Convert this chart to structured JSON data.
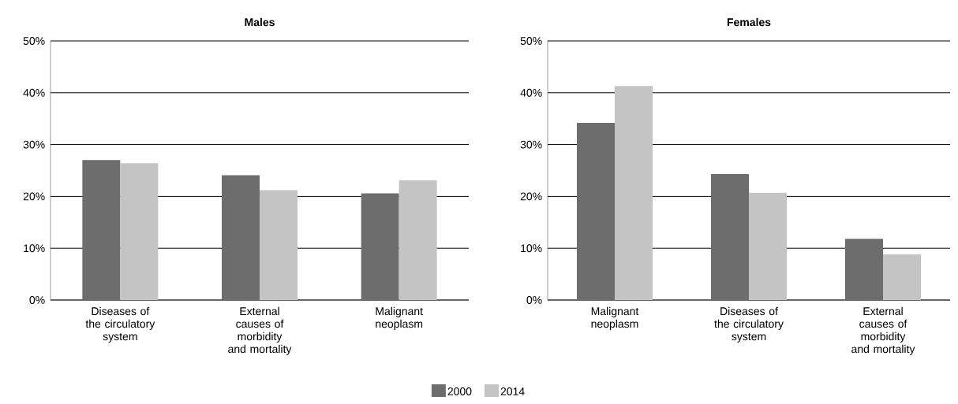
{
  "chart_data": [
    {
      "type": "bar",
      "title": "Males",
      "categories": [
        "Diseases of the circulatory system",
        "External causes of morbidity and mortality",
        "Malignant neoplasm"
      ],
      "series": [
        {
          "color": "#6d6d6d",
          "values": [
            27.0,
            24.1,
            20.6
          ]
        },
        {
          "color": "#c4c4c4",
          "values": [
            26.4,
            21.2,
            23.1
          ]
        }
      ],
      "ylim": [
        0,
        50
      ],
      "yticks": [
        {
          "value": 0,
          "label": "0%"
        },
        {
          "value": 10,
          "label": "10%"
        },
        {
          "value": 20,
          "label": "20%"
        },
        {
          "value": 30,
          "label": "30%"
        },
        {
          "value": 40,
          "label": "40%"
        },
        {
          "value": 50,
          "label": "50%"
        }
      ],
      "grid": "y"
    },
    {
      "type": "bar",
      "title": "Females",
      "categories": [
        "Malignant neoplasm",
        "Diseases of the circulatory system",
        "External causes of morbidity and mortality"
      ],
      "series": [
        {
          "name": "2000",
          "color": "#6d6d6d",
          "values": [
            34.2,
            24.3,
            11.8
          ]
        },
        {
          "name": "2014",
          "color": "#c4c4c4",
          "values": [
            41.3,
            20.7,
            8.8
          ]
        }
      ],
      "ylim": [
        0,
        50
      ],
      "yticks": [
        {
          "value": 0,
          "label": "0%"
        },
        {
          "value": 10,
          "label": "10%"
        },
        {
          "value": 20,
          "label": "20%"
        },
        {
          "value": 30,
          "label": "30%"
        },
        {
          "value": 40,
          "label": "40%"
        },
        {
          "value": 50,
          "label": "50%"
        }
      ],
      "grid": "y",
      "legend": "bottom"
    }
  ]
}
